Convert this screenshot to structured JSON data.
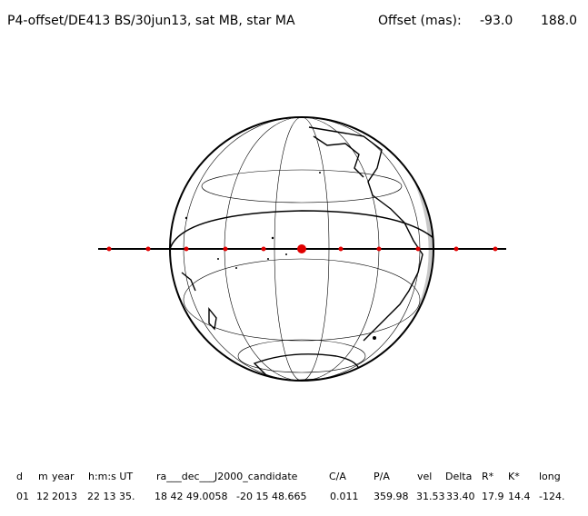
{
  "header": {
    "title": "P4-offset/DE413 BS/30jun13, sat MB, star MA",
    "offset_label": "Offset (mas):",
    "offset_values": [
      "-93.0",
      "188.0"
    ]
  },
  "table": {
    "columns": [
      "d",
      "m",
      "year",
      "h:m:s UT",
      "ra___dec___J2000_candidate",
      "C/A",
      "P/A",
      "vel",
      "Delta",
      "R*",
      "K*",
      "long"
    ],
    "rows": [
      [
        "01",
        "12",
        "2013",
        "22 13 35.",
        "18 42 49.0058",
        "-20 15 48.665",
        "0.011",
        "359.98",
        "31.53",
        "33.40",
        "17.9",
        "14.4",
        "-124."
      ]
    ]
  }
}
